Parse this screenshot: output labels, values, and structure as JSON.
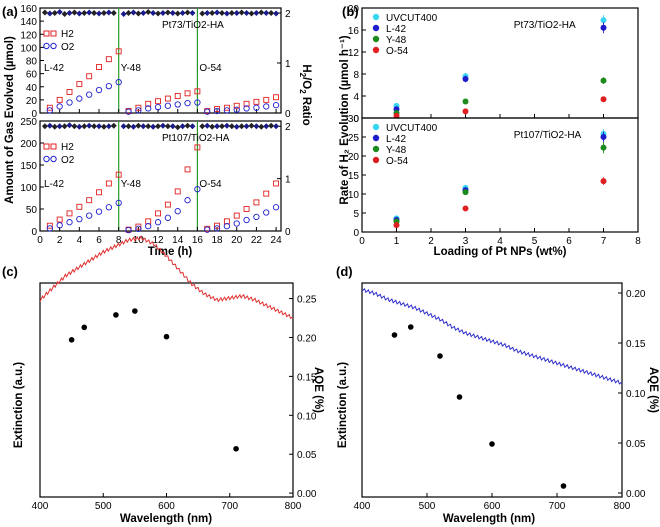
{
  "figure": {
    "panel_a": {
      "label": "(a)",
      "ylabel_left": "Amount of Gas Evolved (µmol)",
      "xlabel": "Time (h)",
      "ylabel_right_top": "H",
      "ylabel_right_sub": "2",
      "ylabel_right_bottom": "/O",
      "ylabel_right_sub2": "2",
      "ylabel_right_end": " Ratio"
    },
    "panel_b": {
      "label": "(b)",
      "xlabel": "Loading of Pt NPs (wt%)",
      "ylabel": "Rate of H₂ Evolution (µmol h⁻¹)"
    },
    "panel_c": {
      "label": "(c)",
      "xlabel": "Wavelength (nm)",
      "ylabel_left": "Extinction (a.u.)",
      "ylabel_right": "AQE (%)"
    },
    "panel_d": {
      "label": "(d)",
      "xlabel": "Wavelength (nm)",
      "ylabel_left": "Extinction (a.u.)",
      "ylabel_right": "AQE (%)"
    }
  },
  "chart_data": [
    {
      "id": "a_top",
      "type": "scatter",
      "title": "Pt73/TiO2-HA",
      "xlabel": "Time (h)",
      "ylabel": "Amount of Gas Evolved (µmol)",
      "y2label": "H2/O2 Ratio",
      "xlim": [
        0,
        24.5
      ],
      "ylim": [
        0,
        160
      ],
      "y2lim": [
        0,
        2.1
      ],
      "yticks": [
        0,
        20,
        40,
        60,
        80,
        100,
        120,
        140,
        160
      ],
      "y2ticks": [
        0,
        1,
        2
      ],
      "legend": [
        "H2",
        "O2"
      ],
      "segment_labels": [
        "L-42",
        "Y-48",
        "O-54"
      ],
      "h2_x": [
        1,
        2,
        3,
        4,
        5,
        6,
        7,
        8,
        9,
        10,
        11,
        12,
        13,
        14,
        15,
        16,
        17,
        18,
        19,
        20,
        21,
        22,
        23,
        24
      ],
      "h2_y": [
        8,
        20,
        32,
        44,
        56,
        70,
        82,
        94,
        3,
        8,
        14,
        18,
        22,
        26,
        30,
        33,
        3,
        6,
        8,
        11,
        14,
        17,
        20,
        24
      ],
      "o2_x": [
        1,
        2,
        3,
        4,
        5,
        6,
        7,
        8,
        9,
        10,
        11,
        12,
        13,
        14,
        15,
        16,
        17,
        18,
        19,
        20,
        21,
        22,
        23,
        24
      ],
      "o2_y": [
        4,
        10,
        16,
        22,
        28,
        35,
        41,
        47,
        2,
        4,
        7,
        9,
        11,
        13,
        15,
        16,
        2,
        3,
        4,
        5,
        7,
        8,
        10,
        12
      ],
      "ratio_x": [
        0.5,
        1,
        1.5,
        2,
        2.5,
        3,
        3.5,
        4,
        4.5,
        5,
        5.5,
        6,
        6.5,
        7,
        7.5,
        8.5,
        9,
        9.5,
        10,
        10.5,
        11,
        11.5,
        12,
        12.5,
        13,
        13.5,
        14,
        14.5,
        15,
        15.5,
        16.5,
        17,
        17.5,
        18,
        18.5,
        19,
        19.5,
        20,
        20.5,
        21,
        21.5,
        22,
        22.5,
        23,
        23.5,
        24
      ],
      "ratio_h2_o2": [
        2.01,
        1.99,
        2.0,
        2.02,
        1.98,
        2.0,
        2.01,
        1.99,
        2.0,
        2.01,
        2.0,
        1.99,
        2.0,
        2.01,
        2.0,
        1.98,
        2.0,
        2.01,
        1.99,
        2.0,
        2.02,
        2.0,
        1.99,
        2.0,
        2.01,
        2.0,
        1.99,
        2.0,
        2.01,
        2.0,
        1.99,
        2.0,
        2.0,
        2.01,
        2.0,
        1.99,
        2.0,
        2.0,
        2.01,
        2.0,
        1.99,
        2.0,
        2.01,
        2.0,
        2.0,
        1.99
      ]
    },
    {
      "id": "a_bottom",
      "type": "scatter",
      "title": "Pt107/TiO2-HA",
      "xlabel": "Time (h)",
      "ylabel": "Amount of Gas Evolved (µmol)",
      "y2label": "H2/O2 Ratio",
      "xlim": [
        0,
        24.5
      ],
      "ylim": [
        0,
        250
      ],
      "y2lim": [
        0,
        2.1
      ],
      "xticks": [
        0,
        2,
        4,
        6,
        8,
        10,
        12,
        14,
        16,
        18,
        20,
        22,
        24
      ],
      "yticks": [
        0,
        50,
        100,
        150,
        200,
        250
      ],
      "y2ticks": [
        0,
        1,
        2
      ],
      "legend": [
        "H2",
        "O2"
      ],
      "segment_labels": [
        "L-42",
        "Y-48",
        "O-54"
      ],
      "h2_x": [
        1,
        2,
        3,
        4,
        5,
        6,
        7,
        8,
        9,
        10,
        11,
        12,
        13,
        14,
        15,
        16,
        17,
        18,
        19,
        20,
        21,
        22,
        23,
        24
      ],
      "h2_y": [
        12,
        26,
        40,
        55,
        70,
        88,
        108,
        128,
        3,
        10,
        22,
        40,
        60,
        90,
        140,
        190,
        5,
        12,
        22,
        35,
        50,
        65,
        85,
        108
      ],
      "o2_x": [
        1,
        2,
        3,
        4,
        5,
        6,
        7,
        8,
        9,
        10,
        11,
        12,
        13,
        14,
        15,
        16,
        17,
        18,
        19,
        20,
        21,
        22,
        23,
        24
      ],
      "o2_y": [
        6,
        13,
        20,
        27,
        35,
        44,
        54,
        64,
        2,
        5,
        11,
        20,
        30,
        45,
        70,
        95,
        3,
        6,
        11,
        17,
        25,
        32,
        42,
        54
      ],
      "ratio_x": [
        0.5,
        1,
        1.5,
        2,
        2.5,
        3,
        3.5,
        4,
        4.5,
        5,
        5.5,
        6,
        6.5,
        7,
        7.5,
        8.5,
        9,
        9.5,
        10,
        10.5,
        11,
        11.5,
        12,
        12.5,
        13,
        13.5,
        14,
        14.5,
        15,
        15.5,
        16.5,
        17,
        17.5,
        18,
        18.5,
        19,
        19.5,
        20,
        20.5,
        21,
        21.5,
        22,
        22.5,
        23,
        23.5,
        24
      ],
      "ratio_h2_o2": [
        2.0,
        2.01,
        1.99,
        2.0,
        2.0,
        2.02,
        2.0,
        1.99,
        2.0,
        2.01,
        2.0,
        2.0,
        1.99,
        2.0,
        2.01,
        2.0,
        2.0,
        1.99,
        2.01,
        2.0,
        2.0,
        1.99,
        2.0,
        2.01,
        2.0,
        2.0,
        1.98,
        2.0,
        2.01,
        2.0,
        2.0,
        2.01,
        1.99,
        2.0,
        2.0,
        2.01,
        2.0,
        1.99,
        2.0,
        2.0,
        2.01,
        2.0,
        1.99,
        2.0,
        2.01,
        2.0
      ]
    },
    {
      "id": "b_top",
      "type": "scatter",
      "title": "Pt73/TiO2-HA",
      "xlim": [
        0,
        8
      ],
      "ylim": [
        0,
        20
      ],
      "yticks": [
        0,
        4,
        8,
        12,
        16,
        20
      ],
      "series": [
        {
          "name": "UVCUT400",
          "color": "#39d5f0",
          "x": [
            1,
            3,
            7
          ],
          "values": [
            2.2,
            7.6,
            17.8
          ],
          "err": [
            0.5,
            0.6,
            0.9
          ]
        },
        {
          "name": "L-42",
          "color": "#1d1dcc",
          "x": [
            1,
            3,
            7
          ],
          "values": [
            1.6,
            7.1,
            16.4
          ],
          "err": [
            0.5,
            0.6,
            1.0
          ]
        },
        {
          "name": "Y-48",
          "color": "#1d8a1d",
          "x": [
            1,
            3,
            7
          ],
          "values": [
            0.9,
            3.0,
            6.8
          ],
          "err": [
            0.3,
            0.4,
            0.6
          ]
        },
        {
          "name": "O-54",
          "color": "#e02020",
          "x": [
            1,
            3,
            7
          ],
          "values": [
            0.4,
            1.2,
            3.4
          ],
          "err": [
            0.2,
            0.3,
            0.5
          ]
        }
      ]
    },
    {
      "id": "b_bottom",
      "type": "scatter",
      "title": "Pt107/TiO2-HA",
      "xlabel": "Loading of Pt NPs (wt%)",
      "xlim": [
        0,
        8
      ],
      "ylim": [
        0,
        30
      ],
      "xticks": [
        0,
        1,
        2,
        3,
        4,
        5,
        6,
        7,
        8
      ],
      "yticks": [
        0,
        5,
        10,
        15,
        20,
        25,
        30
      ],
      "series": [
        {
          "name": "UVCUT400",
          "color": "#39d5f0",
          "x": [
            1,
            3,
            7
          ],
          "values": [
            3.6,
            11.6,
            25.8
          ],
          "err": [
            0.5,
            0.8,
            1.2
          ]
        },
        {
          "name": "L-42",
          "color": "#1d1dcc",
          "x": [
            1,
            3,
            7
          ],
          "values": [
            3.2,
            11.0,
            25.0
          ],
          "err": [
            0.5,
            0.8,
            1.4
          ]
        },
        {
          "name": "Y-48",
          "color": "#1d8a1d",
          "x": [
            1,
            3,
            7
          ],
          "values": [
            2.8,
            10.5,
            22.2
          ],
          "err": [
            0.4,
            0.7,
            1.5
          ]
        },
        {
          "name": "O-54",
          "color": "#e02020",
          "x": [
            1,
            3,
            7
          ],
          "values": [
            1.8,
            6.2,
            13.4
          ],
          "err": [
            0.3,
            0.5,
            1.0
          ]
        }
      ]
    },
    {
      "id": "c",
      "type": "line",
      "xlabel": "Wavelength (nm)",
      "ylabel": "Extinction (a.u.)",
      "y2label": "AQE (%)",
      "xlim": [
        400,
        800
      ],
      "ylim": [
        0,
        1
      ],
      "y2lim": [
        -0.005,
        0.27
      ],
      "xticks": [
        400,
        500,
        600,
        700,
        800
      ],
      "y2ticks": [
        0.0,
        0.05,
        0.1,
        0.15,
        0.2,
        0.25
      ],
      "extinction_color": "#e03030",
      "extinction_x": [
        400,
        420,
        440,
        460,
        480,
        500,
        520,
        540,
        560,
        580,
        600,
        620,
        640,
        660,
        680,
        700,
        720,
        740,
        760,
        780,
        800
      ],
      "extinction_y": [
        0.7,
        0.73,
        0.76,
        0.78,
        0.8,
        0.82,
        0.835,
        0.85,
        0.855,
        0.84,
        0.81,
        0.775,
        0.74,
        0.715,
        0.7,
        0.705,
        0.71,
        0.7,
        0.685,
        0.67,
        0.655
      ],
      "aqe_x": [
        450,
        470,
        520,
        550,
        600,
        710
      ],
      "aqe_y": [
        0.197,
        0.213,
        0.229,
        0.234,
        0.201,
        0.057
      ]
    },
    {
      "id": "d",
      "type": "line",
      "xlabel": "Wavelength (nm)",
      "ylabel": "Extinction (a.u.)",
      "y2label": "AQE (%)",
      "xlim": [
        400,
        800
      ],
      "ylim": [
        0,
        1
      ],
      "y2lim": [
        -0.004,
        0.21
      ],
      "xticks": [
        400,
        500,
        600,
        700,
        800
      ],
      "y2ticks": [
        0.0,
        0.05,
        0.1,
        0.15,
        0.2
      ],
      "extinction_color": "#3030cc",
      "extinction_x": [
        400,
        420,
        440,
        460,
        480,
        500,
        520,
        540,
        560,
        580,
        600,
        620,
        640,
        660,
        680,
        700,
        720,
        740,
        760,
        780,
        800
      ],
      "extinction_y": [
        0.775,
        0.765,
        0.75,
        0.74,
        0.73,
        0.715,
        0.7,
        0.68,
        0.665,
        0.655,
        0.645,
        0.635,
        0.62,
        0.61,
        0.6,
        0.59,
        0.58,
        0.57,
        0.56,
        0.55,
        0.54
      ],
      "aqe_x": [
        450,
        475,
        520,
        550,
        600,
        710
      ],
      "aqe_y": [
        0.158,
        0.166,
        0.137,
        0.096,
        0.049,
        0.007
      ]
    }
  ]
}
